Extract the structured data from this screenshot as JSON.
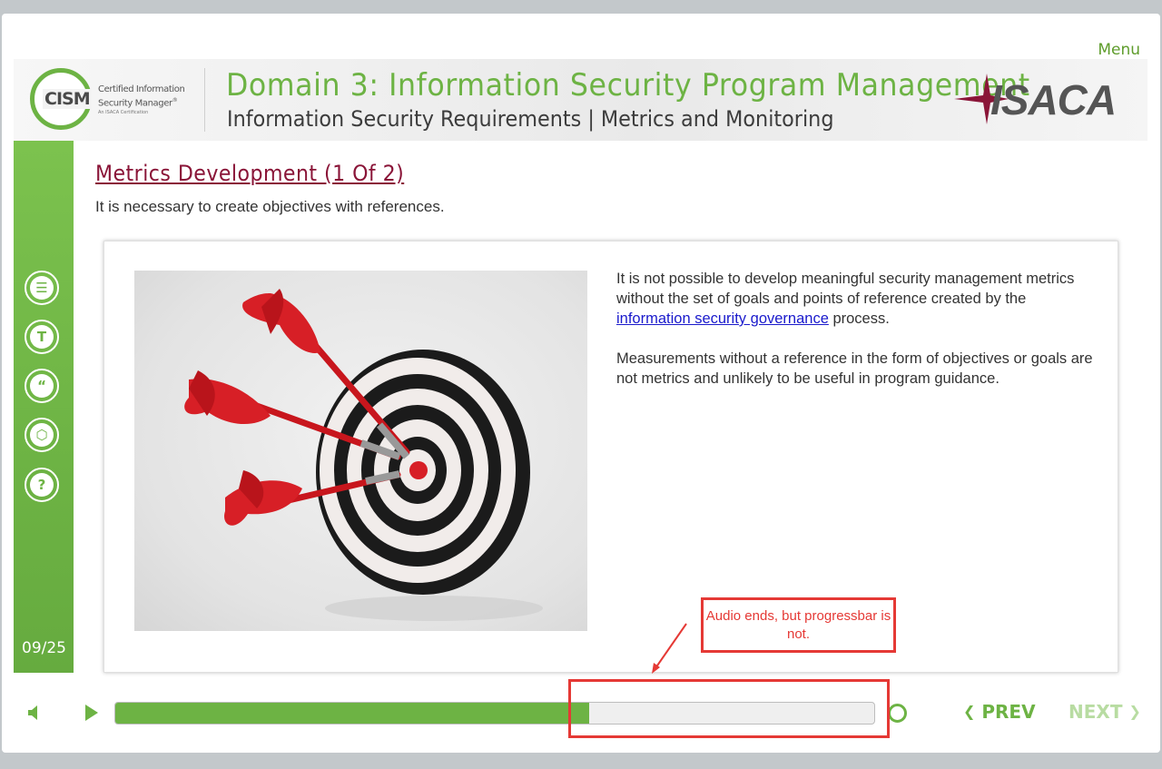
{
  "top_nav": {
    "menu_label": "Menu"
  },
  "header": {
    "cism_logo": {
      "word": "CISM",
      "line1": "Certified Information",
      "line2": "Security Manager",
      "sub": "An ISACA Certification"
    },
    "domain_title": "Domain 3: Information Security Program Management",
    "subtitle": "Information Security Requirements | Metrics and Monitoring",
    "isaca_logo": {
      "word": "ISACA"
    }
  },
  "sidebar": {
    "icons": [
      {
        "name": "notes-icon",
        "glyph": "☰"
      },
      {
        "name": "transcript-icon",
        "glyph": "T"
      },
      {
        "name": "quote-icon",
        "glyph": "“"
      },
      {
        "name": "resources-icon",
        "glyph": "⬡"
      },
      {
        "name": "help-icon",
        "glyph": "?"
      }
    ],
    "page_counter": "09/25"
  },
  "content": {
    "heading": "Metrics Development (1 Of 2)",
    "intro": "It is necessary to create objectives with references.",
    "paragraph1_before": "It is not possible to develop meaningful security management metrics without the set of goals and points of reference created by the ",
    "paragraph1_link": "information security governance",
    "paragraph1_after": " process.",
    "paragraph2": "Measurements without a reference in the form of objectives or goals are not metrics and unlikely to be useful in program guidance."
  },
  "annotation": {
    "callout_text": "Audio ends, but progressbar is not.",
    "color": "#e53935"
  },
  "player": {
    "progress_fraction": 0.624,
    "prev_label": "PREV",
    "next_label": "NEXT",
    "accent_color": "#6db344"
  }
}
